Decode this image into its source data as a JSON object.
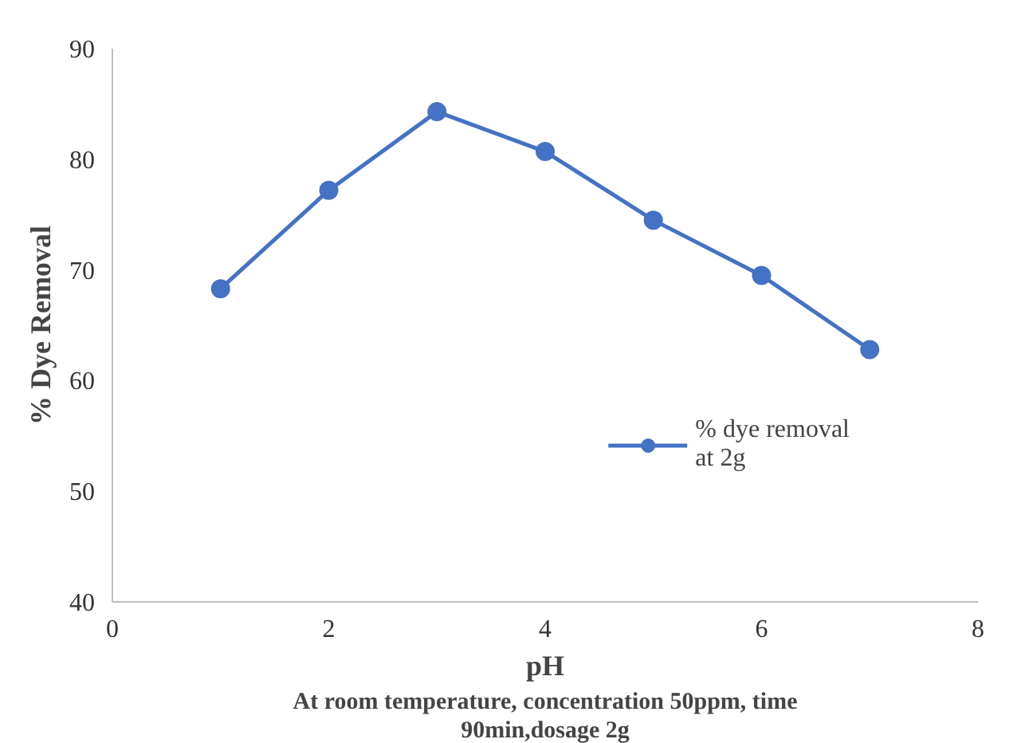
{
  "chart_data": {
    "type": "line",
    "xlabel": "pH",
    "ylabel": "% Dye Removal",
    "annotations": [
      "At room temperature, concentration 50ppm, time 90min,dosage 2g"
    ],
    "x": [
      1,
      2,
      3,
      4,
      5,
      6,
      7
    ],
    "series": [
      {
        "name": "% dye removal at 2g",
        "color": "#4472c4",
        "values": [
          68.3,
          77.2,
          84.3,
          80.7,
          74.5,
          69.5,
          62.8
        ]
      }
    ],
    "xlim": [
      0,
      8
    ],
    "xticks": [
      0,
      2,
      4,
      6,
      8
    ],
    "ylim": [
      40,
      90
    ],
    "yticks": [
      40,
      50,
      60,
      70,
      80,
      90
    ],
    "grid": false,
    "legend": "right",
    "marker": "circle",
    "line_style": "solid"
  }
}
